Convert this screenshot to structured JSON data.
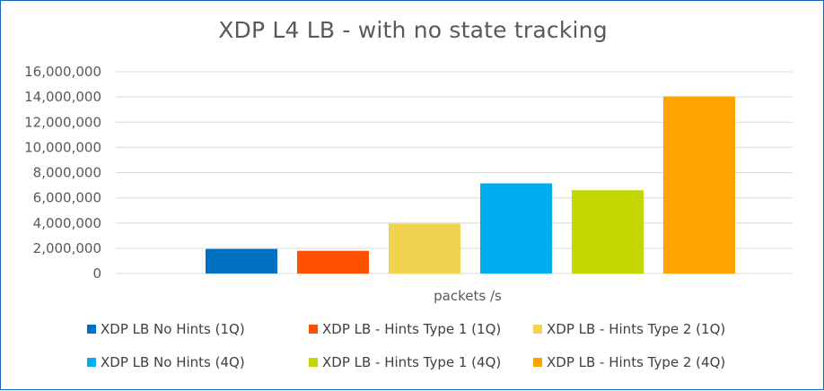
{
  "chart_data": {
    "type": "bar",
    "title": "XDP L4 LB - with no state tracking",
    "xlabel": "packets /s",
    "ylabel": "",
    "ylim": [
      0,
      16000000
    ],
    "yticks": [
      0,
      2000000,
      4000000,
      6000000,
      8000000,
      10000000,
      12000000,
      14000000,
      16000000
    ],
    "ytick_labels": [
      "0",
      "2,000,000",
      "4,000,000",
      "6,000,000",
      "8,000,000",
      "10,000,000",
      "12,000,000",
      "14,000,000",
      "16,000,000"
    ],
    "grid": true,
    "legend_position": "bottom",
    "categories": [
      "packets /s"
    ],
    "series": [
      {
        "name": "XDP LB No Hints (1Q)",
        "values": [
          1950000
        ],
        "color": "#0070c0"
      },
      {
        "name": "XDP LB - Hints Type 1 (1Q)",
        "values": [
          1800000
        ],
        "color": "#ff5000"
      },
      {
        "name": "XDP LB - Hints Type 2 (1Q)",
        "values": [
          3950000
        ],
        "color": "#f2d34f"
      },
      {
        "name": "XDP LB No Hints (4Q)",
        "values": [
          7150000
        ],
        "color": "#00aeef"
      },
      {
        "name": "XDP LB - Hints Type 1 (4Q)",
        "values": [
          6600000
        ],
        "color": "#c5d700"
      },
      {
        "name": "XDP LB - Hints Type 2 (4Q)",
        "values": [
          14050000
        ],
        "color": "#ffa300"
      }
    ]
  }
}
